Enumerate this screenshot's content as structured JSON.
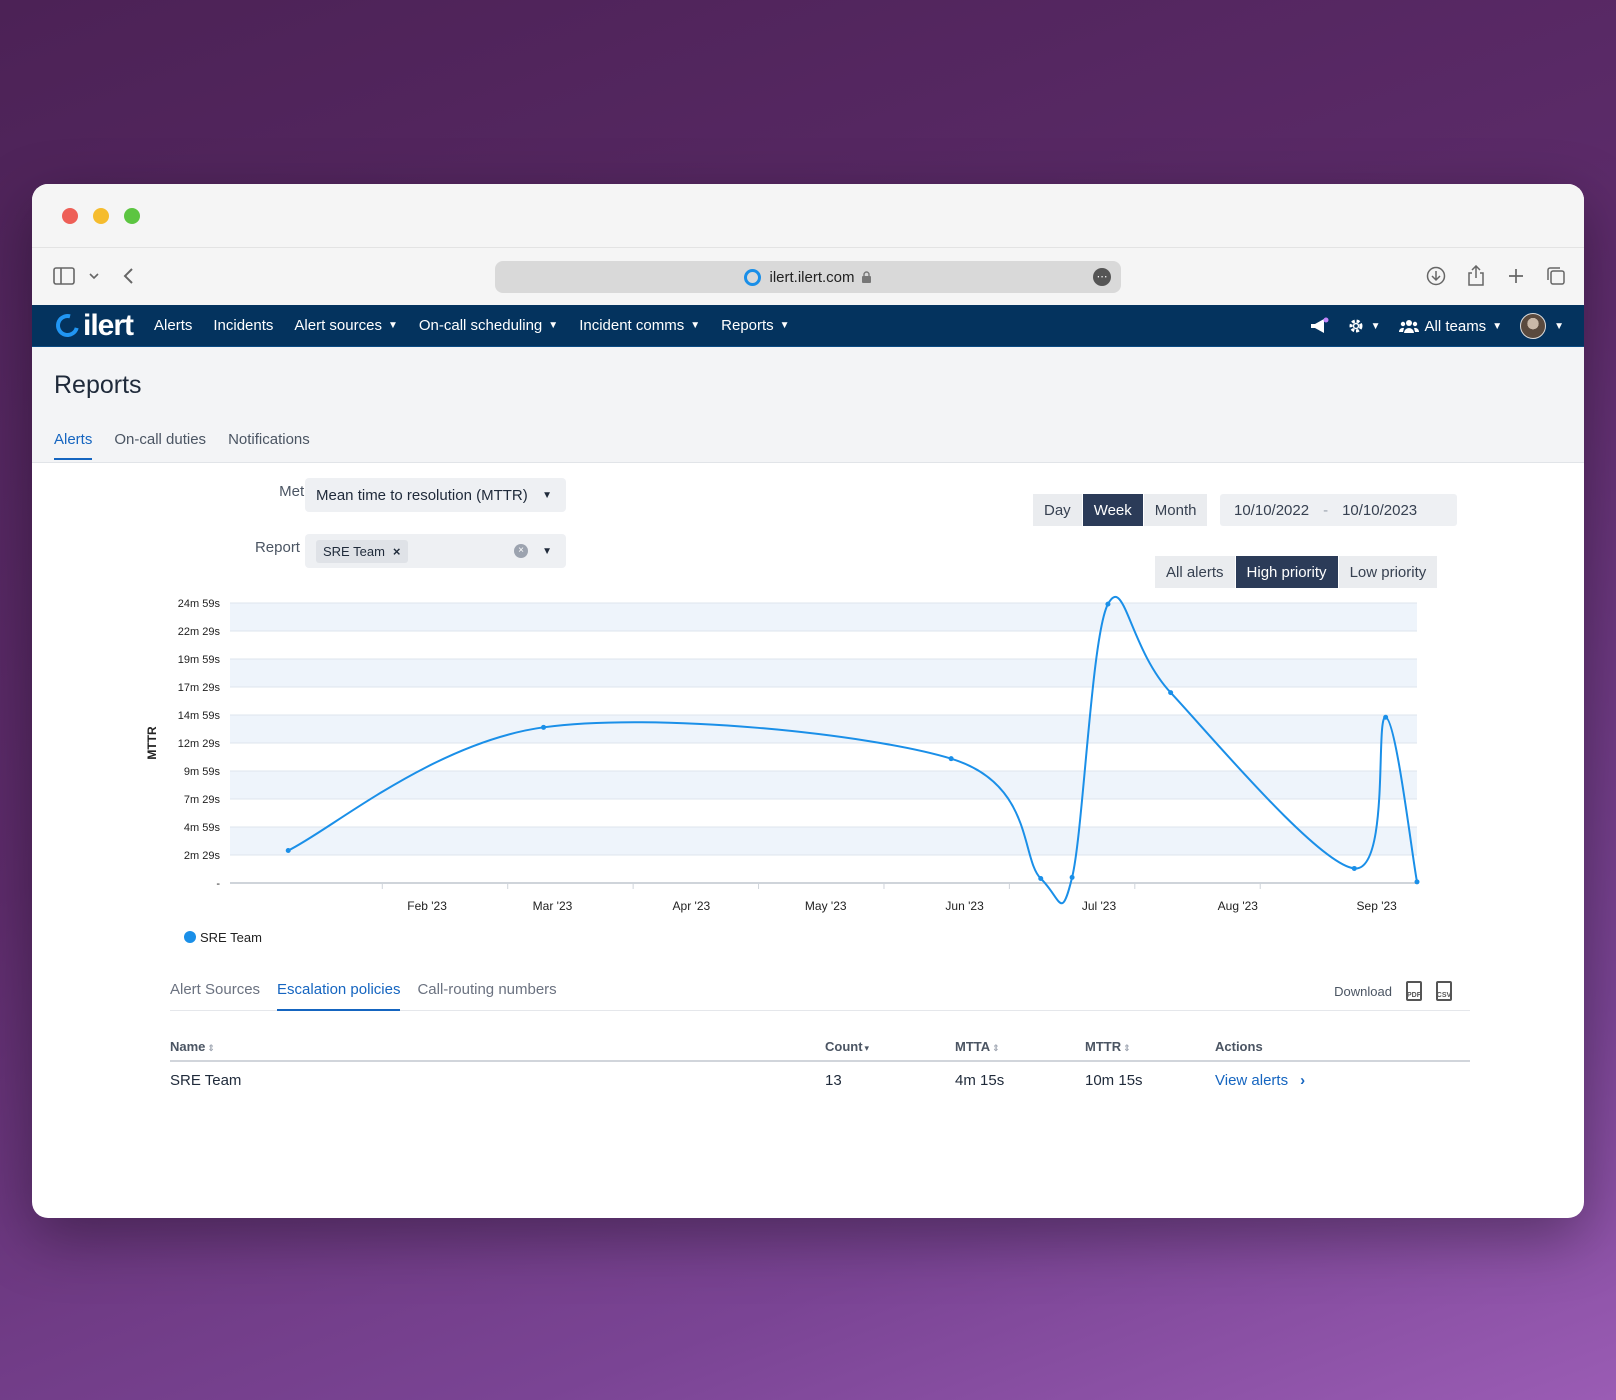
{
  "browser": {
    "url": "ilert.ilert.com"
  },
  "nav": {
    "logo": "ilert",
    "items": [
      {
        "label": "Alerts",
        "dropdown": false
      },
      {
        "label": "Incidents",
        "dropdown": false
      },
      {
        "label": "Alert sources",
        "dropdown": true
      },
      {
        "label": "On-call scheduling",
        "dropdown": true
      },
      {
        "label": "Incident comms",
        "dropdown": true
      },
      {
        "label": "Reports",
        "dropdown": true
      }
    ],
    "teams_label": "All teams"
  },
  "page": {
    "title": "Reports",
    "tabs": [
      "Alerts",
      "On-call duties",
      "Notifications"
    ],
    "active_tab": "Alerts"
  },
  "filters": {
    "metric_label": "Metric",
    "metric_value": "Mean time to resolution (MTTR)",
    "report_by_label": "Report by",
    "report_by_chip": "SRE Team",
    "granularity": [
      "Day",
      "Week",
      "Month"
    ],
    "granularity_active": "Week",
    "date_from": "10/10/2022",
    "date_sep": "-",
    "date_to": "10/10/2023",
    "priority": [
      "All alerts",
      "High priority",
      "Low priority"
    ],
    "priority_active": "High priority"
  },
  "chart_data": {
    "type": "line",
    "ylabel": "MTTR",
    "y_ticks": [
      "-",
      "2m 29s",
      "4m 59s",
      "7m 29s",
      "9m 59s",
      "12m 29s",
      "14m 59s",
      "17m 29s",
      "19m 59s",
      "22m 29s",
      "24m 59s"
    ],
    "x_ticks": [
      "Feb '23",
      "Mar '23",
      "Apr '23",
      "May '23",
      "Jun '23",
      "Jul '23",
      "Aug '23",
      "Sep '23"
    ],
    "ylim": [
      0,
      25
    ],
    "grid": true,
    "legend_position": "bottom-left",
    "series": [
      {
        "name": "SRE Team",
        "color": "#1a8fe8",
        "points": [
          {
            "x": "2023-01-01",
            "y": 2.9
          },
          {
            "x": "2023-02-27",
            "y": 13.9
          },
          {
            "x": "2023-05-29",
            "y": 11.1
          },
          {
            "x": "2023-06-18",
            "y": 0.4
          },
          {
            "x": "2023-06-25",
            "y": 0.5
          },
          {
            "x": "2023-07-03",
            "y": 24.9
          },
          {
            "x": "2023-07-17",
            "y": 17.0
          },
          {
            "x": "2023-08-27",
            "y": 1.3
          },
          {
            "x": "2023-09-03",
            "y": 14.8
          },
          {
            "x": "2023-09-10",
            "y": 0.1
          }
        ]
      }
    ]
  },
  "bottom": {
    "tabs": [
      "Alert Sources",
      "Escalation policies",
      "Call-routing numbers"
    ],
    "active_tab": "Escalation policies",
    "download_label": "Download",
    "table": {
      "headers": [
        "Name",
        "Count",
        "MTTA",
        "MTTR",
        "Actions"
      ],
      "rows": [
        {
          "name": "SRE Team",
          "count": "13",
          "mtta": "4m 15s",
          "mttr": "10m 15s",
          "action": "View alerts"
        }
      ]
    }
  }
}
